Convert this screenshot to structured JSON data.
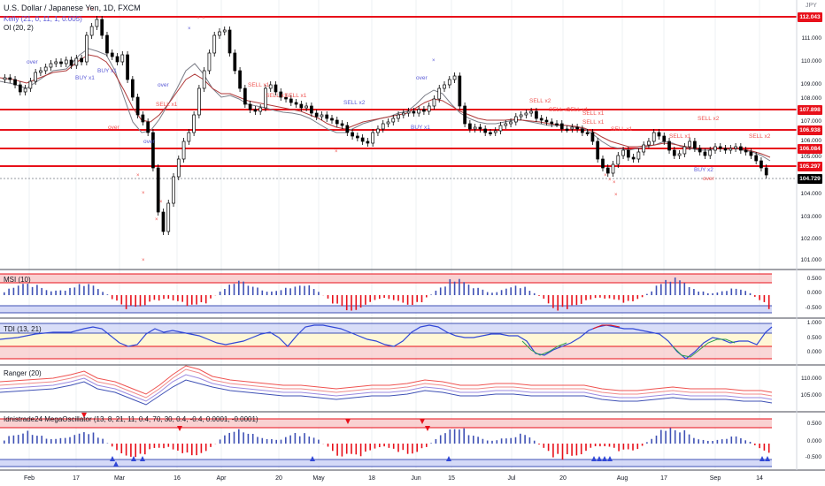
{
  "header": {
    "title": "U.S. Dollar / Japanese Yen, 1D, FXCM",
    "indicator_1": "Kelly (21, 0, 11, 1, 0.005)",
    "indicator_2": "OI (20, 2)",
    "currency": "JPY"
  },
  "price_levels": {
    "l1": "112.043",
    "l2": "107.898",
    "l3": "106.938",
    "l4": "106.084",
    "l5": "105.297",
    "current": "104.729"
  },
  "price_axis": [
    "111.000",
    "110.000",
    "109.000",
    "108.000",
    "107.000",
    "106.000",
    "105.000",
    "104.000",
    "103.000",
    "102.000",
    "101.000"
  ],
  "time_axis": [
    "Feb",
    "17",
    "Mar",
    "16",
    "Apr",
    "20",
    "May",
    "18",
    "Jun",
    "15",
    "Jul",
    "20",
    "Aug",
    "17",
    "Sep",
    "14"
  ],
  "panes": {
    "msi": {
      "name": "MSI (10)",
      "levels": [
        "0.500",
        "0.000",
        "-0.500"
      ]
    },
    "tdi": {
      "name": "TDI (13, 21)",
      "levels": [
        "1.000",
        "0.500",
        "0.000"
      ]
    },
    "ranger": {
      "name": "Ranger (20)",
      "levels": [
        "110.000",
        "105.000"
      ]
    },
    "mega": {
      "name": "Idnistrade24 MegaOscillator (13, 8, 21, 11, 0.4, 70, 30, 0.4, -0.4, 0.0001, -0.0001)",
      "levels": [
        "0.500",
        "0.000",
        "-0.500"
      ]
    }
  },
  "signals": [
    {
      "text": "over",
      "color": "#5b5bd6"
    },
    {
      "text": "BUY x1",
      "color": "#5b5bd6"
    },
    {
      "text": "BUY x1",
      "color": "#5b5bd6"
    },
    {
      "text": "over",
      "color": "#5b5bd6"
    },
    {
      "text": "over",
      "color": "#5b5bd6"
    },
    {
      "text": "over",
      "color": "#5b5bd6"
    },
    {
      "text": "SELL x1",
      "color": "#ef5350"
    },
    {
      "text": "SELL x1",
      "color": "#ef5350"
    },
    {
      "text": "SELL x1",
      "color": "#ef5350"
    },
    {
      "text": "SELL x1",
      "color": "#ef5350"
    },
    {
      "text": "SELL x2",
      "color": "#ef5350"
    },
    {
      "text": "over",
      "color": "#5b5bd6"
    },
    {
      "text": "BUY x1",
      "color": "#5b5bd6"
    },
    {
      "text": "SELL x2",
      "color": "#ef5350"
    },
    {
      "text": "SELL x1",
      "color": "#ef5350"
    },
    {
      "text": "SELL x1",
      "color": "#ef5350"
    },
    {
      "text": "SELL x1",
      "color": "#ef5350"
    },
    {
      "text": "SELL x1",
      "color": "#ef5350"
    },
    {
      "text": "SELL x1",
      "color": "#ef5350"
    },
    {
      "text": "SELL x1",
      "color": "#ef5350"
    },
    {
      "text": "SELL x2",
      "color": "#ef5350"
    },
    {
      "text": "BUY x2",
      "color": "#5b5bd6"
    },
    {
      "text": "over",
      "color": "#ef5350"
    },
    {
      "text": "SELL x2",
      "color": "#ef5350"
    }
  ],
  "colors": {
    "up_candle": "#ffffff",
    "down_candle": "#000000",
    "level_line": "#e8101a",
    "buy": "#5b5bd6",
    "sell": "#ef5350",
    "band_red": "#f7c6c6",
    "band_blue": "#c9d0f5"
  }
}
